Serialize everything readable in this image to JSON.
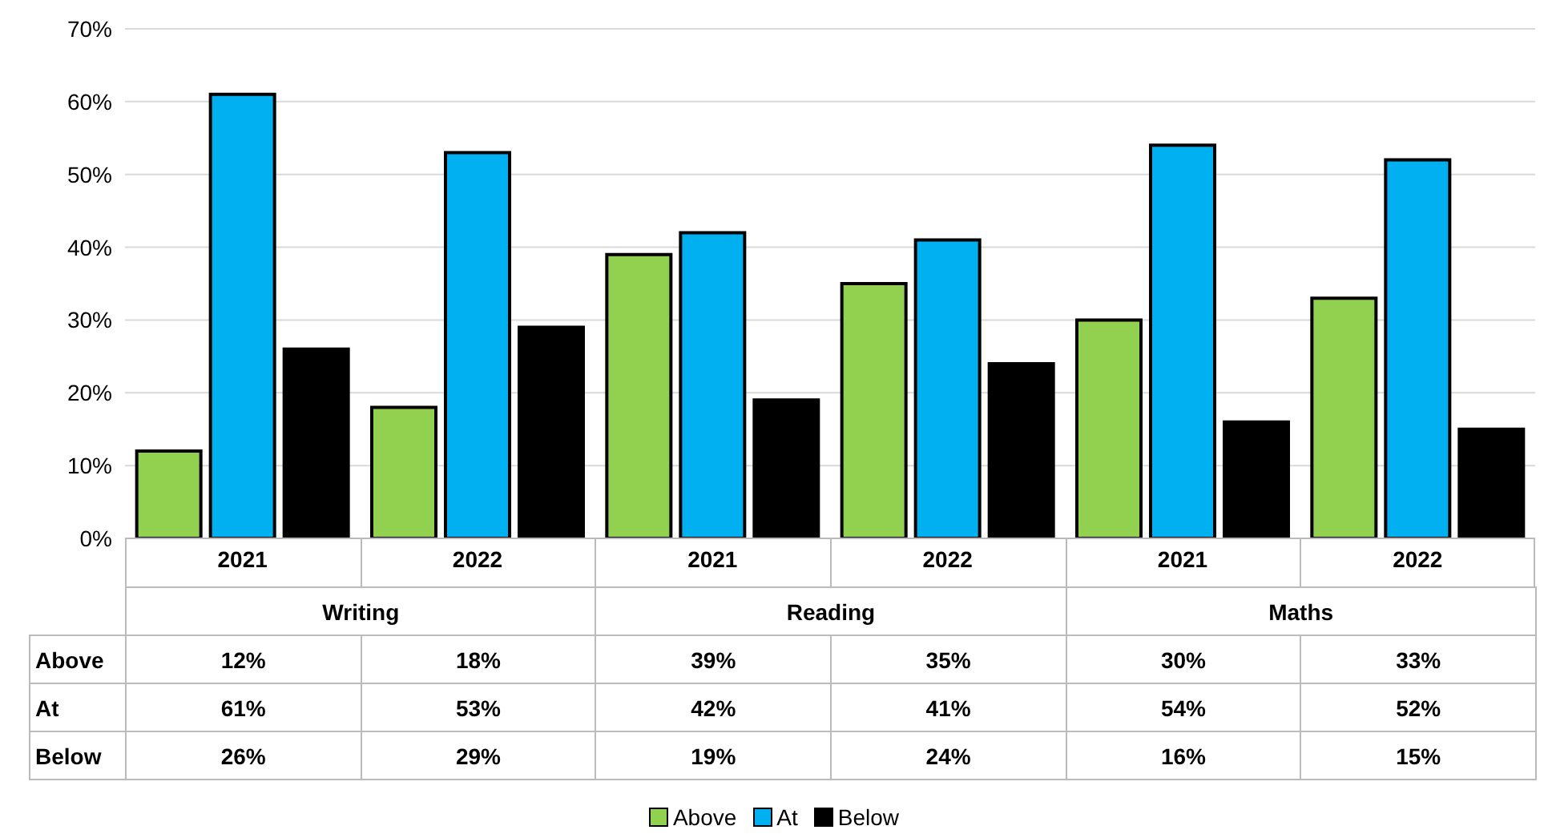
{
  "chart_data": {
    "type": "bar",
    "categories": [
      "2021",
      "2022",
      "2021",
      "2022",
      "2021",
      "2022"
    ],
    "annotations": [
      "Writing",
      "Reading",
      "Maths"
    ],
    "series": [
      {
        "name": "Above",
        "color": "#92d050",
        "values": [
          12,
          18,
          39,
          35,
          30,
          33
        ],
        "value_labels": [
          "12%",
          "18%",
          "39%",
          "35%",
          "30%",
          "33%"
        ]
      },
      {
        "name": "At",
        "color": "#00b0f0",
        "values": [
          61,
          53,
          42,
          41,
          54,
          52
        ],
        "value_labels": [
          "61%",
          "53%",
          "42%",
          "41%",
          "54%",
          "52%"
        ]
      },
      {
        "name": "Below",
        "color": "#000000",
        "values": [
          26,
          29,
          19,
          24,
          16,
          15
        ],
        "value_labels": [
          "26%",
          "29%",
          "19%",
          "24%",
          "16%",
          "15%"
        ]
      }
    ],
    "ylim": [
      0,
      70
    ],
    "yticks": [
      {
        "value": 0,
        "label": "0%"
      },
      {
        "value": 10,
        "label": "10%"
      },
      {
        "value": 20,
        "label": "20%"
      },
      {
        "value": 30,
        "label": "30%"
      },
      {
        "value": 40,
        "label": "40%"
      },
      {
        "value": 50,
        "label": "50%"
      },
      {
        "value": 60,
        "label": "60%"
      },
      {
        "value": 70,
        "label": "70%"
      }
    ],
    "grid": "y",
    "legend": "bottom"
  }
}
